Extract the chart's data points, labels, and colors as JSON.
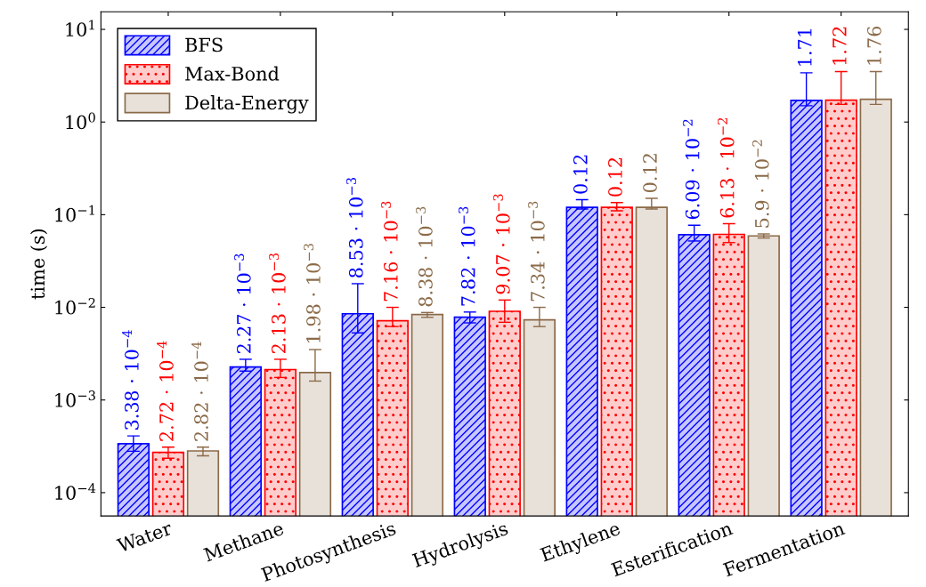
{
  "chart_data": {
    "type": "bar",
    "ylabel": "time (s)",
    "log": true,
    "legend": "top left",
    "grid": false,
    "categories": [
      "Water",
      "Methane",
      "Photosynthesis",
      "Hydrolysis",
      "Ethylene",
      "Esterification",
      "Fermentation"
    ],
    "ylim": [
      5.6e-05,
      15.5
    ],
    "yticks": [
      {
        "value": 0.0001,
        "label": "10$^{−4}$"
      },
      {
        "value": 0.001,
        "label": "10$^{−3}$"
      },
      {
        "value": 0.01,
        "label": "10$^{−2}$"
      },
      {
        "value": 0.1,
        "label": "10$^{−1}$"
      },
      {
        "value": 1,
        "label": "10$^{0}$"
      },
      {
        "value": 10,
        "label": "10$^{1}$"
      }
    ],
    "series": [
      {
        "name": "BFS",
        "color": "#0000ff",
        "values": [
          0.000338,
          0.00227,
          0.00853,
          0.00782,
          0.12,
          0.0609,
          1.71
        ],
        "errors": [
          [
            0.00028,
            0.00041
          ],
          [
            0.00205,
            0.00275
          ],
          [
            0.0053,
            0.018
          ],
          [
            0.0068,
            0.0089
          ],
          [
            0.115,
            0.145
          ],
          [
            0.052,
            0.077
          ],
          [
            1.5,
            3.4
          ]
        ],
        "value_labels": [
          "3.38 · 10$^{−4}$",
          "2.27 · 10$^{−3}$",
          "8.53 · 10$^{−3}$",
          "7.82 · 10$^{−3}$",
          "0.12",
          "6.09 · 10$^{−2}$",
          "1.71"
        ]
      },
      {
        "name": "Max-Bond",
        "color": "#ff0000",
        "values": [
          0.000272,
          0.00213,
          0.00716,
          0.00907,
          0.12,
          0.0613,
          1.72
        ],
        "errors": [
          [
            0.000235,
            0.00031
          ],
          [
            0.00175,
            0.00275
          ],
          [
            0.0062,
            0.01
          ],
          [
            0.0069,
            0.012
          ],
          [
            0.11,
            0.135
          ],
          [
            0.05,
            0.08
          ],
          [
            1.55,
            3.5
          ]
        ],
        "value_labels": [
          "2.72 · 10$^{−4}$",
          "2.13 · 10$^{−3}$",
          "7.16 · 10$^{−3}$",
          "9.07 · 10$^{−3}$",
          "0.12",
          "6.13 · 10$^{−2}$",
          "1.72"
        ]
      },
      {
        "name": "Delta-Energy",
        "color": "#8b6a48",
        "values": [
          0.000282,
          0.00198,
          0.00838,
          0.00734,
          0.12,
          0.059,
          1.76
        ],
        "errors": [
          [
            0.00025,
            0.00031
          ],
          [
            0.0016,
            0.0035
          ],
          [
            0.0078,
            0.0088
          ],
          [
            0.0062,
            0.01
          ],
          [
            0.115,
            0.15
          ],
          [
            0.056,
            0.062
          ],
          [
            1.55,
            3.5
          ]
        ],
        "value_labels": [
          "2.82 · 10$^{−4}$",
          "1.98 · 10$^{−3}$",
          "8.38 · 10$^{−3}$",
          "7.34 · 10$^{−3}$",
          "0.12",
          "5.9 · 10$^{−2}$",
          "1.76"
        ]
      }
    ]
  }
}
